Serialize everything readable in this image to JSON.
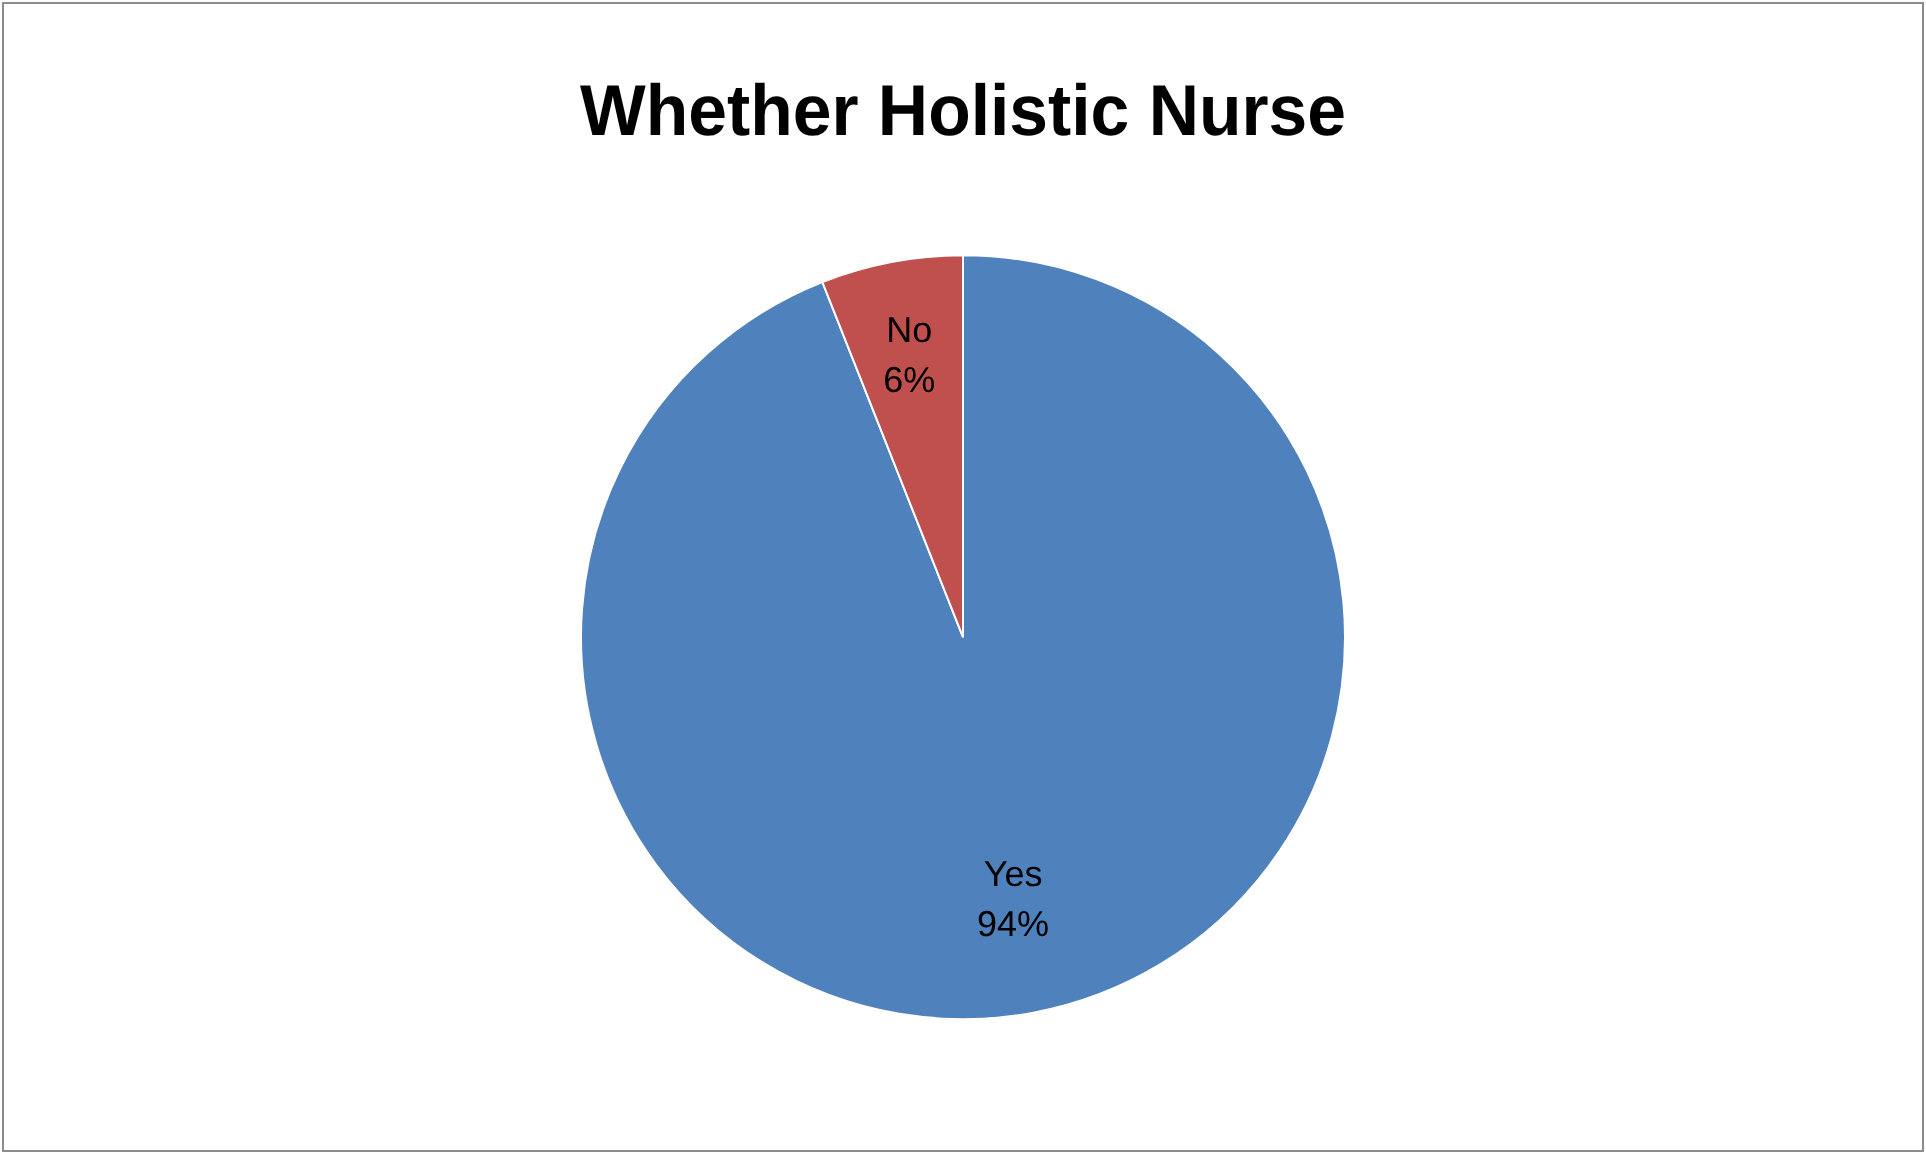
{
  "chart_data": {
    "type": "pie",
    "title": "Whether Holistic Nurse",
    "categories": [
      "Yes",
      "No"
    ],
    "values": [
      94,
      6
    ],
    "colors": [
      "#4f81bd",
      "#c0504d"
    ],
    "value_labels": [
      "94%",
      "6%"
    ],
    "legend": false
  }
}
